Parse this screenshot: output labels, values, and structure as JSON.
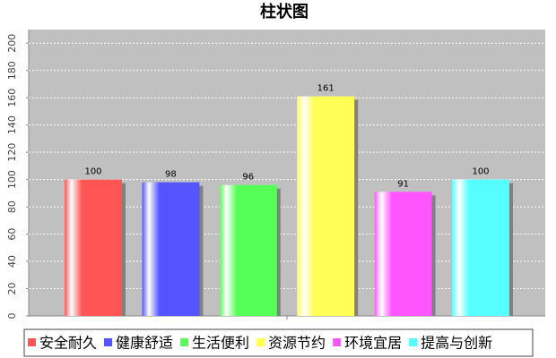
{
  "chart_data": {
    "type": "bar",
    "title": "柱状图",
    "categories": [
      null
    ],
    "series": [
      {
        "name": "安全耐久",
        "color": "#ff5555",
        "values": [
          100
        ]
      },
      {
        "name": "健康舒适",
        "color": "#5555ff",
        "values": [
          98
        ]
      },
      {
        "name": "生活便利",
        "color": "#55ff55",
        "values": [
          96
        ]
      },
      {
        "name": "资源节约",
        "color": "#ffff55",
        "values": [
          161
        ]
      },
      {
        "name": "环境宜居",
        "color": "#ff55ff",
        "values": [
          91
        ]
      },
      {
        "name": "提高与创新",
        "color": "#55ffff",
        "values": [
          100
        ]
      }
    ],
    "ylim": [
      0,
      210
    ],
    "yticks": [
      0,
      20,
      40,
      60,
      80,
      100,
      120,
      140,
      160,
      180,
      200
    ],
    "grid": true,
    "legend": "bottom"
  }
}
